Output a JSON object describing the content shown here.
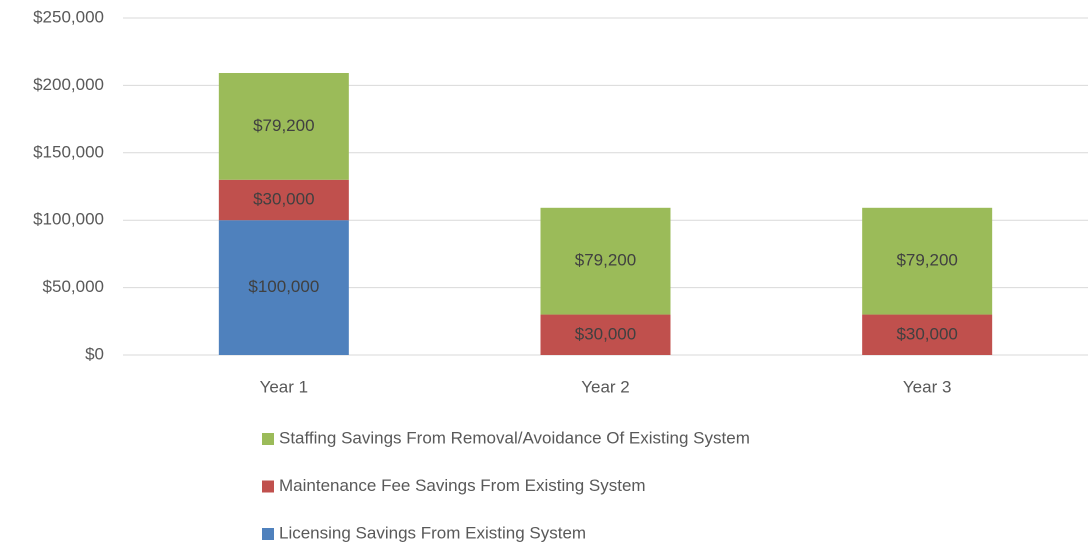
{
  "chart_data": {
    "type": "stacked_bar",
    "categories": [
      "Year 1",
      "Year 2",
      "Year 3"
    ],
    "series": [
      {
        "name": "Licensing Savings From Existing System",
        "color": "#4f81bd",
        "values": [
          100000,
          0,
          0
        ],
        "value_labels": [
          "$100,000",
          null,
          null
        ]
      },
      {
        "name": "Maintenance Fee Savings From Existing System",
        "color": "#c0504d",
        "values": [
          30000,
          30000,
          30000
        ],
        "value_labels": [
          "$30,000",
          "$30,000",
          "$30,000"
        ]
      },
      {
        "name": "Staffing Savings From Removal/Avoidance Of Existing System",
        "color": "#9bbb59",
        "values": [
          79200,
          79200,
          79200
        ],
        "value_labels": [
          "$79,200",
          "$79,200",
          "$79,200"
        ]
      }
    ],
    "ylim": [
      0,
      250000
    ],
    "yticks": [
      {
        "value": 0,
        "label": "$0"
      },
      {
        "value": 50000,
        "label": "$50,000"
      },
      {
        "value": 100000,
        "label": "$100,000"
      },
      {
        "value": 150000,
        "label": "$150,000"
      },
      {
        "value": 200000,
        "label": "$200,000"
      },
      {
        "value": 250000,
        "label": "$250,000"
      }
    ],
    "grid": true,
    "legend": "bottom"
  }
}
